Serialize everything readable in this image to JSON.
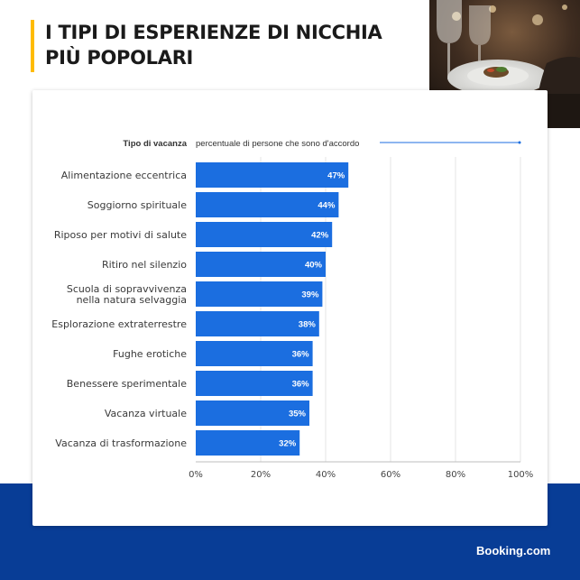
{
  "title": {
    "line1": "I TIPI DI ESPERIENZE DI NICCHIA",
    "line2": "PIÙ POPOLARI"
  },
  "brand": "Booking.com",
  "colors": {
    "accent": "#febb02",
    "bar": "#1b6ee0",
    "band": "#083d96"
  },
  "chart_data": {
    "type": "bar",
    "orientation": "horizontal",
    "category_header": "Tipo di vacanza",
    "value_header": "percentuale di persone che sono d'accordo",
    "categories": [
      [
        "Alimentazione eccentrica"
      ],
      [
        "Soggiorno spirituale"
      ],
      [
        "Riposo per motivi di salute"
      ],
      [
        "Ritiro nel silenzio"
      ],
      [
        "Scuola di sopravvivenza",
        "nella natura selvaggia"
      ],
      [
        "Esplorazione extraterrestre"
      ],
      [
        "Fughe erotiche"
      ],
      [
        "Benessere sperimentale"
      ],
      [
        "Vacanza virtuale"
      ],
      [
        "Vacanza di trasformazione"
      ]
    ],
    "values": [
      47,
      44,
      42,
      40,
      39,
      38,
      36,
      36,
      35,
      32
    ],
    "value_labels": [
      "47%",
      "44%",
      "42%",
      "40%",
      "39%",
      "38%",
      "36%",
      "36%",
      "35%",
      "32%"
    ],
    "xlim": [
      0,
      100
    ],
    "xticks": [
      0,
      20,
      40,
      60,
      80,
      100
    ],
    "xtick_labels": [
      "0%",
      "20%",
      "40%",
      "60%",
      "80%",
      "100%"
    ],
    "grid": true
  }
}
